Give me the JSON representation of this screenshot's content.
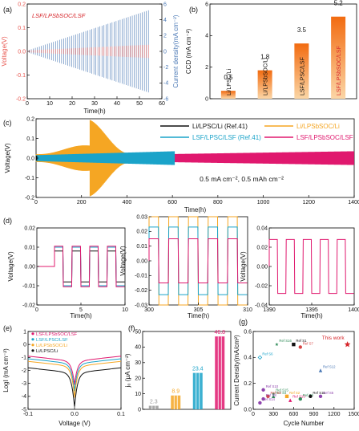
{
  "panel_letters": [
    "(a)",
    "(b)",
    "(c)",
    "(d)",
    "(e)",
    "(f)",
    "(g)"
  ],
  "chart_data": [
    {
      "id": "a",
      "type": "line",
      "title": "",
      "annotation": "LSF/LPSbSOC/LSF",
      "xlabel": "Time(h)",
      "ylabel": "Voltage(V)",
      "y2label": "Current density(mA cm⁻²)",
      "xlim": [
        0,
        60
      ],
      "ylim": [
        -0.2,
        0.2
      ],
      "y2lim": [
        -6,
        6
      ],
      "xticks": [
        "0",
        "10",
        "20",
        "30",
        "40",
        "50",
        "60"
      ],
      "yticks": [
        "-0.2",
        "-0.1",
        "0.0",
        "0.1",
        "0.2"
      ],
      "y2ticks": [
        "-6",
        "-4",
        "-2",
        "0",
        "2",
        "4",
        "6"
      ],
      "series": [
        {
          "name": "Voltage",
          "color": "#e8554e",
          "x": [
            0,
            10,
            20,
            30,
            40,
            50,
            54
          ],
          "amplitude": [
            0.004,
            0.006,
            0.01,
            0.014,
            0.02,
            0.024,
            0.028
          ]
        },
        {
          "name": "Current density",
          "color": "#4a78b5",
          "x": [
            0,
            54
          ],
          "amplitude": [
            0.1,
            5.2
          ]
        }
      ]
    },
    {
      "id": "b",
      "type": "bar",
      "ylabel": "CCD (mA cm⁻²)",
      "ylim": [
        0,
        6
      ],
      "yticks": [
        "0",
        "2",
        "4",
        "6"
      ],
      "categories": [
        "Li/LPSC/Li",
        "Li/LPSbSOC/Li",
        "LSF/LPSC/LSF",
        "LSF/LPSbSOC/LSF"
      ],
      "values": [
        0.5,
        1.8,
        3.5,
        5.2
      ],
      "value_labels": [
        "0.5",
        "1.8",
        "3.5",
        "5.2"
      ],
      "color": "#f08a24"
    },
    {
      "id": "c",
      "type": "line",
      "xlabel": "Time(h)",
      "ylabel": "Voltage(V)",
      "xlim": [
        0,
        1400
      ],
      "ylim": [
        -0.2,
        0.2
      ],
      "xticks": [
        "0",
        "200",
        "400",
        "600",
        "800",
        "1000",
        "1200",
        "1400"
      ],
      "yticks": [
        "-0.2",
        "-0.1",
        "0.0",
        "0.1",
        "0.2"
      ],
      "annotation": "0.5 mA cm⁻², 0.5 mAh cm⁻²",
      "series": [
        {
          "name": "Li/LPSC/Li (Ref.41)",
          "color": "#111111",
          "x_end": 5,
          "amplitude": [
            0.01,
            0.01
          ]
        },
        {
          "name": "Li/LPSbSOC/Li",
          "color": "#f5a623",
          "x_end": 430,
          "amplitude": [
            0.02,
            0.2
          ]
        },
        {
          "name": "LSF/LPSC/LSF (Ref.41)",
          "color": "#1aa3c9",
          "x_end": 610,
          "amplitude": [
            0.015,
            0.035
          ]
        },
        {
          "name": "LSF/LPSbSOC/LSF",
          "color": "#e0186e",
          "x_end": 1400,
          "amplitude": [
            0.01,
            0.035
          ]
        }
      ]
    },
    {
      "id": "d",
      "type": "line",
      "ylabel": "Voltage(V)",
      "xlabel": "Time(h)",
      "subpanels": [
        {
          "xlim": [
            0,
            10
          ],
          "ylim": [
            -0.02,
            0.02
          ],
          "xticks": [
            "0",
            "5",
            "10"
          ],
          "yticks": [
            "-0.02",
            "-0.01",
            "0.00",
            "0.01",
            "0.02"
          ],
          "series": [
            {
              "name": "Li/LPSC/Li (Ref.41)",
              "color": "#111111",
              "amp": 0.008,
              "period": 2
            },
            {
              "name": "LSF/LPSC/LSF (Ref.41)",
              "color": "#1aa3c9",
              "amp": 0.01,
              "period": 2
            },
            {
              "name": "LSF/LPSbSOC/LSF",
              "color": "#e0186e",
              "amp": 0.0105,
              "period": 2
            }
          ]
        },
        {
          "xlim": [
            300,
            310
          ],
          "ylim": [
            -0.03,
            0.03
          ],
          "xticks": [
            "300",
            "305",
            "310"
          ],
          "yticks": [
            "-0.03",
            "-0.02",
            "-0.01",
            "0.00",
            "0.01",
            "0.02",
            "0.03"
          ],
          "series": [
            {
              "name": "Li/LPSbSOC/Li",
              "color": "#f5a623",
              "amp": 0.03,
              "period": 2
            },
            {
              "name": "LSF/LPSC/LSF (Ref.41)",
              "color": "#1aa3c9",
              "amp": 0.023,
              "period": 2
            },
            {
              "name": "LSF/LPSbSOC/LSF",
              "color": "#e0186e",
              "amp": 0.015,
              "period": 2
            }
          ]
        },
        {
          "xlim": [
            1390,
            1400
          ],
          "ylim": [
            -0.04,
            0.04
          ],
          "xticks": [
            "1390",
            "1395",
            "1400"
          ],
          "yticks": [
            "-0.04",
            "-0.02",
            "0.00",
            "0.02",
            "0.04"
          ],
          "series": [
            {
              "name": "LSF/LPSbSOC/LSF",
              "color": "#e0186e",
              "amp": 0.028,
              "period": 2
            }
          ]
        }
      ]
    },
    {
      "id": "e",
      "type": "line",
      "xlabel": "Voltage (V)",
      "ylabel": "LogI (mA cm⁻²)",
      "xlim": [
        -0.1,
        0.1
      ],
      "ylim": [
        -5,
        1
      ],
      "xticks": [
        "-0.1",
        "0.0",
        "0.1"
      ],
      "yticks": [
        "-5",
        "-4",
        "-3",
        "-2",
        "-1",
        "0",
        "1"
      ],
      "series": [
        {
          "name": "LSF/LPSbSOC/LSF",
          "color": "#e0186e",
          "base": -1.3
        },
        {
          "name": "LSF/LPSC/LSF",
          "color": "#1aa3c9",
          "base": -1.5
        },
        {
          "name": "Li/LPSbSOC/Li",
          "color": "#f5a623",
          "base": -1.7
        },
        {
          "name": "Li/LPSC/Li",
          "color": "#111111",
          "base": -2.2
        }
      ]
    },
    {
      "id": "f",
      "type": "bar",
      "ylabel": "j₀ (μA cm⁻²)",
      "ylim": [
        0,
        50
      ],
      "yticks": [
        "0",
        "10",
        "20",
        "30",
        "40",
        "50"
      ],
      "categories": [
        "Li/LPSC/Li",
        "Li/LPSbSOC/Li",
        "LSF/LPSC/LSF",
        "LSF/LPSbSOC/LSF"
      ],
      "values": [
        2.3,
        8.9,
        23.4,
        46.8
      ],
      "value_labels": [
        "2.3",
        "8.9",
        "23.4",
        "46.8"
      ],
      "colors": [
        "#9a9a9a",
        "#f5a623",
        "#1aa3c9",
        "#e0186e"
      ]
    },
    {
      "id": "g",
      "type": "scatter",
      "xlabel": "Cycle Number",
      "ylabel": "Current Density(mA/cm²)",
      "xlim": [
        0,
        1500
      ],
      "ylim": [
        0,
        0.6
      ],
      "xticks": [
        "0",
        "300",
        "600",
        "900",
        "1200",
        "1500"
      ],
      "yticks": [
        "0.0",
        "0.2",
        "0.4",
        "0.6"
      ],
      "annotation": "This work",
      "points": [
        {
          "label": "Ref S6",
          "x": 100,
          "y": 0.4,
          "color": "#1aa3c9",
          "marker": "diamond"
        },
        {
          "label": "Ref S16",
          "x": 350,
          "y": 0.5,
          "color": "#2e8b57",
          "marker": "star"
        },
        {
          "label": "Ref S1",
          "x": 600,
          "y": 0.5,
          "color": "#111111",
          "marker": "square"
        },
        {
          "label": "Ref S7",
          "x": 700,
          "y": 0.48,
          "color": "#d64545",
          "marker": "circle"
        },
        {
          "label": "Ref S12",
          "x": 1000,
          "y": 0.3,
          "color": "#4a78b5",
          "marker": "triangle"
        },
        {
          "label": "Ref S10",
          "x": 150,
          "y": 0.15,
          "color": "#8e44ad",
          "marker": "circle"
        },
        {
          "label": "Ref S15",
          "x": 300,
          "y": 0.12,
          "color": "#2e8b57",
          "marker": "star"
        },
        {
          "label": "Ref S4",
          "x": 300,
          "y": 0.1,
          "color": "#2e8b57",
          "marker": "triangle"
        },
        {
          "label": "Ref S2",
          "x": 500,
          "y": 0.1,
          "color": "#f5a623",
          "marker": "square"
        },
        {
          "label": "Ref S3",
          "x": 220,
          "y": 0.1,
          "color": "#d64545",
          "marker": "circle"
        },
        {
          "label": "Ref S8",
          "x": 150,
          "y": 0.08,
          "color": "#8e44ad",
          "marker": "circle"
        },
        {
          "label": "Ref S14",
          "x": 100,
          "y": 0.05,
          "color": "#8e44ad",
          "marker": "circle"
        },
        {
          "label": "Ref S5",
          "x": 1000,
          "y": 0.1,
          "color": "#8e44ad",
          "marker": "circle"
        },
        {
          "label": "Ref S9",
          "x": 700,
          "y": 0.08,
          "color": "#2e8b57",
          "marker": "circle"
        },
        {
          "label": "Ref S13",
          "x": 550,
          "y": 0.07,
          "color": "#e0186e",
          "marker": "triangle"
        },
        {
          "label": "Ref S11",
          "x": 850,
          "y": 0.1,
          "color": "#111111",
          "marker": "circle"
        },
        {
          "label": "This work",
          "x": 1400,
          "y": 0.5,
          "color": "#d6262b",
          "marker": "star"
        }
      ]
    }
  ]
}
